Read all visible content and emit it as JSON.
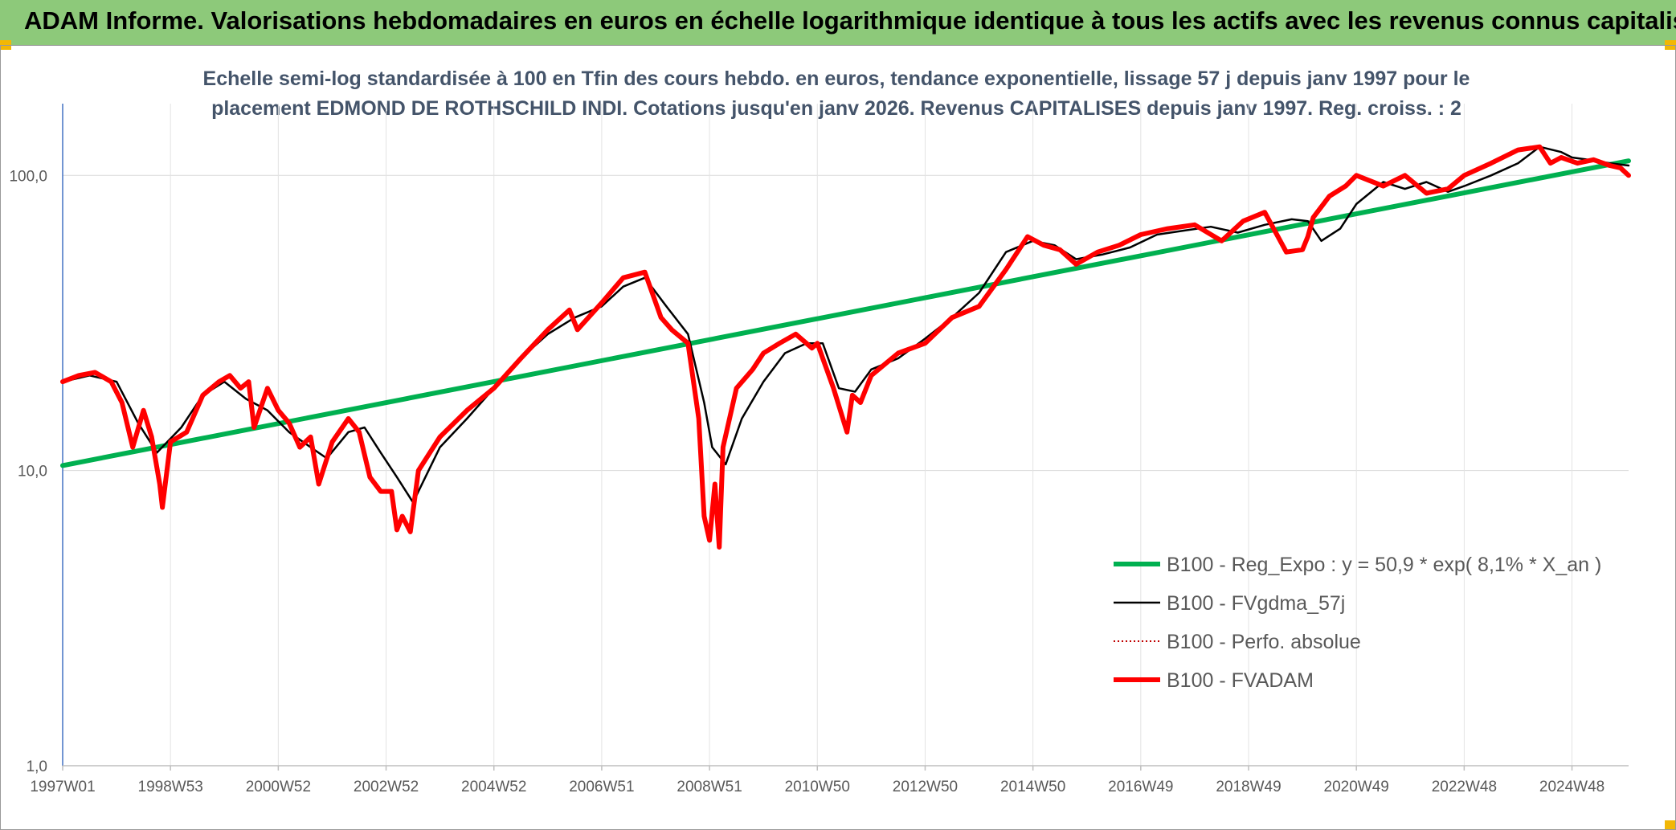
{
  "header": {
    "title": "ADAM Informe. Valorisations hebdomadaires en euros en échelle logarithmique identique à tous les actifs avec les revenus connus capitalisés",
    "band_color": "#8dc97a"
  },
  "chart_data": {
    "type": "line",
    "title_line1": "Echelle semi-log standardisée à 100 en Tfin des cours hebdo. en euros, tendance exponentielle, lissage 57 j depuis janv 1997 pour le",
    "title_line2": "placement EDMOND DE ROTHSCHILD INDI. Cotations jusqu'en janv 2026. Revenus CAPITALISES depuis janv 1997. Reg. croiss. : 2",
    "y_scale": "log",
    "ylim": [
      1,
      175
    ],
    "y_ticks": [
      {
        "value": 100,
        "label": "100,0"
      },
      {
        "value": 10,
        "label": "10,0"
      },
      {
        "value": 1,
        "label": "1,0"
      }
    ],
    "xlim": [
      1997.0,
      2026.05
    ],
    "x_ticks": [
      {
        "year": 1997.0,
        "label": "1997W01"
      },
      {
        "year": 1999.0,
        "label": "1998W53"
      },
      {
        "year": 2001.0,
        "label": "2000W52"
      },
      {
        "year": 2003.0,
        "label": "2002W52"
      },
      {
        "year": 2005.0,
        "label": "2004W52"
      },
      {
        "year": 2007.0,
        "label": "2006W51"
      },
      {
        "year": 2009.0,
        "label": "2008W51"
      },
      {
        "year": 2011.0,
        "label": "2010W50"
      },
      {
        "year": 2013.0,
        "label": "2012W50"
      },
      {
        "year": 2015.0,
        "label": "2014W50"
      },
      {
        "year": 2017.0,
        "label": "2016W49"
      },
      {
        "year": 2019.0,
        "label": "2018W49"
      },
      {
        "year": 2021.0,
        "label": "2020W49"
      },
      {
        "year": 2023.0,
        "label": "2022W48"
      },
      {
        "year": 2025.0,
        "label": "2024W48"
      }
    ],
    "grid": true,
    "legend_position": "bottom-right",
    "series": [
      {
        "name": "B100 - Reg_Expo : y = 50,9 * exp( 8,1% *  X_an )",
        "color": "#00b050",
        "style": "solid-thick",
        "x": [
          1997.0,
          2026.05
        ],
        "y": [
          10.4,
          112
        ]
      },
      {
        "name": "B100 - FVgdma_57j",
        "color": "#000000",
        "style": "solid-thin",
        "x": [
          1997.0,
          1997.5,
          1998.0,
          1998.4,
          1998.75,
          1999.2,
          1999.6,
          2000.0,
          2000.4,
          2000.8,
          2001.2,
          2001.6,
          2001.9,
          2002.3,
          2002.6,
          2002.9,
          2003.2,
          2003.5,
          2004.0,
          2004.5,
          2005.0,
          2005.5,
          2006.0,
          2006.5,
          2007.0,
          2007.4,
          2007.8,
          2008.2,
          2008.6,
          2008.9,
          2009.05,
          2009.3,
          2009.6,
          2010.0,
          2010.4,
          2010.8,
          2011.1,
          2011.4,
          2011.7,
          2012.0,
          2012.5,
          2013.0,
          2013.5,
          2014.0,
          2014.5,
          2015.0,
          2015.4,
          2015.8,
          2016.3,
          2016.8,
          2017.3,
          2017.8,
          2018.3,
          2018.8,
          2019.3,
          2019.8,
          2020.1,
          2020.35,
          2020.7,
          2021.0,
          2021.5,
          2021.9,
          2022.3,
          2022.7,
          2023.0,
          2023.5,
          2024.0,
          2024.4,
          2024.8,
          2025.0,
          2025.3,
          2025.7,
          2026.05
        ],
        "y": [
          20,
          21,
          20,
          14.5,
          11.5,
          14,
          18,
          20,
          17.5,
          16,
          13.5,
          12,
          11,
          13.5,
          14,
          11.5,
          9.5,
          7.8,
          12,
          15,
          19,
          24,
          29,
          33,
          36,
          42,
          45,
          36,
          29,
          17,
          12,
          10.5,
          15,
          20,
          25,
          27,
          27,
          19,
          18.5,
          22,
          24,
          28,
          33,
          40,
          55,
          60,
          58,
          52,
          54,
          57,
          63,
          65,
          67,
          64,
          68,
          71,
          70,
          60,
          66,
          80,
          95,
          90,
          95,
          88,
          92,
          100,
          110,
          125,
          120,
          115,
          113,
          110,
          108
        ]
      },
      {
        "name": "B100 - Perfo. absolue",
        "color": "#c00000",
        "style": "dotted",
        "x": [
          1997.0,
          1997.3,
          1997.6,
          1997.9,
          1998.1,
          1998.3,
          1998.5,
          1998.65,
          1998.8,
          1998.85,
          1999.0,
          1999.3,
          1999.6,
          1999.9,
          2000.1,
          2000.3,
          2000.45,
          2000.55,
          2000.8,
          2001.0,
          2001.2,
          2001.4,
          2001.6,
          2001.75,
          2002.0,
          2002.3,
          2002.5,
          2002.7,
          2002.9,
          2003.1,
          2003.2,
          2003.3,
          2003.45,
          2003.6,
          2004.0,
          2004.5,
          2005.0,
          2005.5,
          2006.0,
          2006.4,
          2006.55,
          2007.0,
          2007.4,
          2007.8,
          2008.1,
          2008.3,
          2008.6,
          2008.8,
          2008.9,
          2009.0,
          2009.1,
          2009.18,
          2009.25,
          2009.5,
          2009.8,
          2010.0,
          2010.3,
          2010.6,
          2010.9,
          2011.0,
          2011.3,
          2011.55,
          2011.65,
          2011.8,
          2012.0,
          2012.5,
          2013.0,
          2013.5,
          2014.0,
          2014.5,
          2014.9,
          2015.2,
          2015.5,
          2015.8,
          2016.2,
          2016.6,
          2017.0,
          2017.5,
          2018.0,
          2018.5,
          2018.9,
          2019.3,
          2019.7,
          2020.0,
          2020.1,
          2020.2,
          2020.5,
          2020.8,
          2021.0,
          2021.5,
          2021.9,
          2022.3,
          2022.7,
          2023.0,
          2023.5,
          2024.0,
          2024.4,
          2024.6,
          2024.8,
          2025.1,
          2025.4,
          2025.7,
          2025.9,
          2026.05
        ],
        "y": [
          20,
          21,
          21.5,
          20,
          17,
          12,
          16,
          13,
          9,
          7.5,
          12.5,
          13.5,
          18,
          20,
          21,
          19,
          20,
          14,
          19,
          16,
          14.5,
          12,
          13,
          9,
          12.5,
          15,
          13.5,
          9.5,
          8.5,
          8.5,
          6.3,
          7,
          6.2,
          10,
          13,
          16,
          19,
          24,
          30,
          35,
          30,
          37,
          45,
          47,
          33,
          30,
          27,
          15,
          7,
          5.8,
          9,
          5.5,
          12,
          19,
          22,
          25,
          27,
          29,
          26,
          27,
          19,
          13.5,
          18,
          17,
          21,
          25,
          27,
          33,
          36,
          48,
          62,
          58,
          56,
          50,
          55,
          58,
          63,
          66,
          68,
          60,
          70,
          75,
          55,
          56,
          62,
          72,
          85,
          92,
          100,
          92,
          100,
          87,
          90,
          100,
          110,
          122,
          125,
          110,
          115,
          110,
          113,
          108,
          106,
          100
        ]
      },
      {
        "name": "B100 - FVADAM",
        "color": "#ff0000",
        "style": "solid-thick",
        "x": [
          1997.0,
          1997.3,
          1997.6,
          1997.9,
          1998.1,
          1998.3,
          1998.5,
          1998.65,
          1998.8,
          1998.85,
          1999.0,
          1999.3,
          1999.6,
          1999.9,
          2000.1,
          2000.3,
          2000.45,
          2000.55,
          2000.8,
          2001.0,
          2001.2,
          2001.4,
          2001.6,
          2001.75,
          2002.0,
          2002.3,
          2002.5,
          2002.7,
          2002.9,
          2003.1,
          2003.2,
          2003.3,
          2003.45,
          2003.6,
          2004.0,
          2004.5,
          2005.0,
          2005.5,
          2006.0,
          2006.4,
          2006.55,
          2007.0,
          2007.4,
          2007.8,
          2008.1,
          2008.3,
          2008.6,
          2008.8,
          2008.9,
          2009.0,
          2009.1,
          2009.18,
          2009.25,
          2009.5,
          2009.8,
          2010.0,
          2010.3,
          2010.6,
          2010.9,
          2011.0,
          2011.3,
          2011.55,
          2011.65,
          2011.8,
          2012.0,
          2012.5,
          2013.0,
          2013.5,
          2014.0,
          2014.5,
          2014.9,
          2015.2,
          2015.5,
          2015.8,
          2016.2,
          2016.6,
          2017.0,
          2017.5,
          2018.0,
          2018.5,
          2018.9,
          2019.3,
          2019.7,
          2020.0,
          2020.1,
          2020.2,
          2020.5,
          2020.8,
          2021.0,
          2021.5,
          2021.9,
          2022.3,
          2022.7,
          2023.0,
          2023.5,
          2024.0,
          2024.4,
          2024.6,
          2024.8,
          2025.1,
          2025.4,
          2025.7,
          2025.9,
          2026.05
        ],
        "y": [
          20,
          21,
          21.5,
          20,
          17,
          12,
          16,
          13,
          9,
          7.5,
          12.5,
          13.5,
          18,
          20,
          21,
          19,
          20,
          14,
          19,
          16,
          14.5,
          12,
          13,
          9,
          12.5,
          15,
          13.5,
          9.5,
          8.5,
          8.5,
          6.3,
          7,
          6.2,
          10,
          13,
          16,
          19,
          24,
          30,
          35,
          30,
          37,
          45,
          47,
          33,
          30,
          27,
          15,
          7,
          5.8,
          9,
          5.5,
          12,
          19,
          22,
          25,
          27,
          29,
          26,
          27,
          19,
          13.5,
          18,
          17,
          21,
          25,
          27,
          33,
          36,
          48,
          62,
          58,
          56,
          50,
          55,
          58,
          63,
          66,
          68,
          60,
          70,
          75,
          55,
          56,
          62,
          72,
          85,
          92,
          100,
          92,
          100,
          87,
          90,
          100,
          110,
          122,
          125,
          110,
          115,
          110,
          113,
          108,
          106,
          100
        ]
      }
    ]
  }
}
